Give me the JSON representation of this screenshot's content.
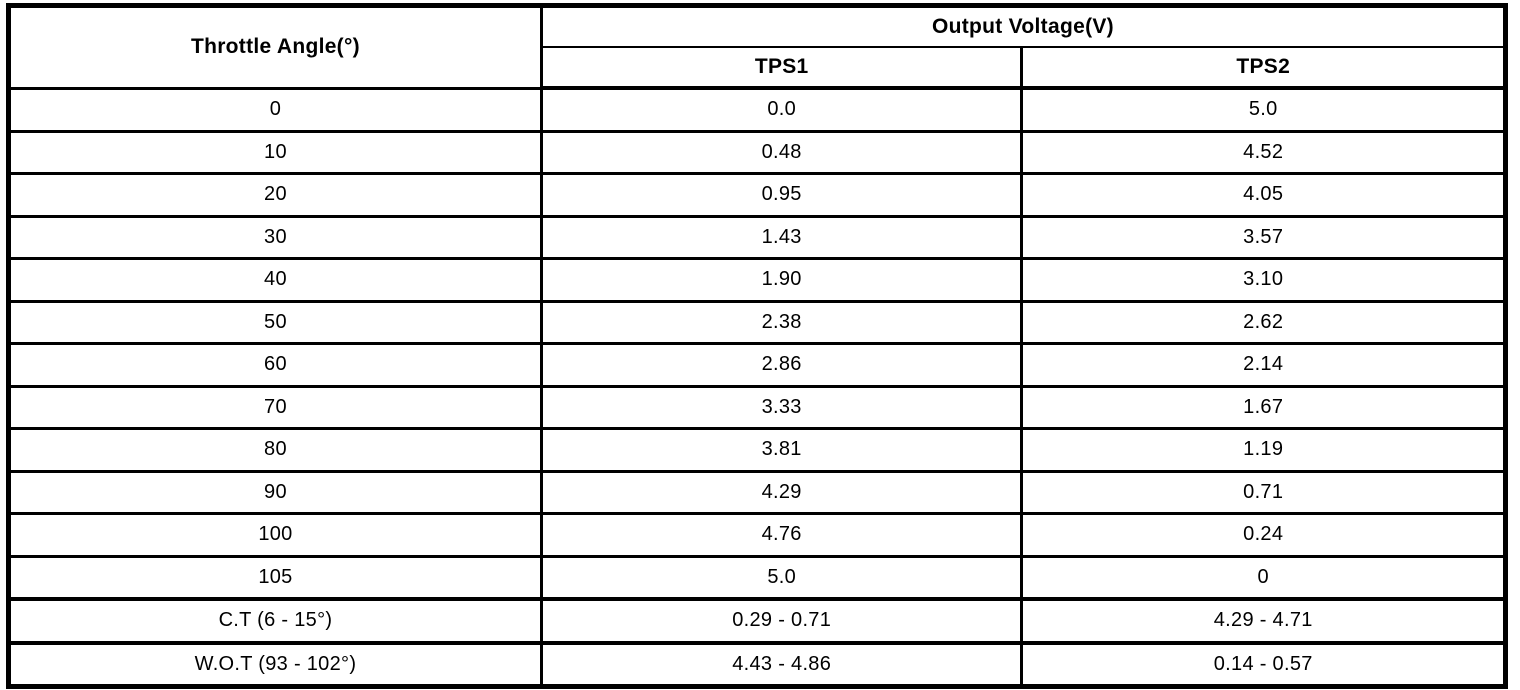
{
  "page": {
    "background_color": "#ffffff",
    "line_color": "#000000",
    "text_color": "#000000"
  },
  "table": {
    "header": {
      "throttle_angle": "Throttle Angle(°)",
      "output_voltage": "Output Voltage(V)",
      "tps1": "TPS1",
      "tps2": "TPS2"
    },
    "rows": [
      {
        "angle": "0",
        "tps1": "0.0",
        "tps2": "5.0"
      },
      {
        "angle": "10",
        "tps1": "0.48",
        "tps2": "4.52"
      },
      {
        "angle": "20",
        "tps1": "0.95",
        "tps2": "4.05"
      },
      {
        "angle": "30",
        "tps1": "1.43",
        "tps2": "3.57"
      },
      {
        "angle": "40",
        "tps1": "1.90",
        "tps2": "3.10"
      },
      {
        "angle": "50",
        "tps1": "2.38",
        "tps2": "2.62"
      },
      {
        "angle": "60",
        "tps1": "2.86",
        "tps2": "2.14"
      },
      {
        "angle": "70",
        "tps1": "3.33",
        "tps2": "1.67"
      },
      {
        "angle": "80",
        "tps1": "3.81",
        "tps2": "1.19"
      },
      {
        "angle": "90",
        "tps1": "4.29",
        "tps2": "0.71"
      },
      {
        "angle": "100",
        "tps1": "4.76",
        "tps2": "0.24"
      },
      {
        "angle": "105",
        "tps1": "5.0",
        "tps2": "0"
      },
      {
        "angle": "C.T (6 - 15°)",
        "tps1": "0.29 - 0.71",
        "tps2": "4.29 - 4.71"
      },
      {
        "angle": "W.O.T (93 - 102°)",
        "tps1": "4.43 - 4.86",
        "tps2": "0.14 - 0.57"
      }
    ]
  },
  "chart_data": {
    "type": "table",
    "title": "",
    "columns": [
      "Throttle Angle(°)",
      "Output Voltage(V) TPS1",
      "Output Voltage(V) TPS2"
    ],
    "rows": [
      [
        "0",
        "0.0",
        "5.0"
      ],
      [
        "10",
        "0.48",
        "4.52"
      ],
      [
        "20",
        "0.95",
        "4.05"
      ],
      [
        "30",
        "1.43",
        "3.57"
      ],
      [
        "40",
        "1.90",
        "3.10"
      ],
      [
        "50",
        "2.38",
        "2.62"
      ],
      [
        "60",
        "2.86",
        "2.14"
      ],
      [
        "70",
        "3.33",
        "1.67"
      ],
      [
        "80",
        "3.81",
        "1.19"
      ],
      [
        "90",
        "4.29",
        "0.71"
      ],
      [
        "100",
        "4.76",
        "0.24"
      ],
      [
        "105",
        "5.0",
        "0"
      ],
      [
        "C.T (6 - 15°)",
        "0.29 - 0.71",
        "4.29 - 4.71"
      ],
      [
        "W.O.T (93 - 102°)",
        "4.43 - 4.86",
        "0.14 - 0.57"
      ]
    ]
  }
}
